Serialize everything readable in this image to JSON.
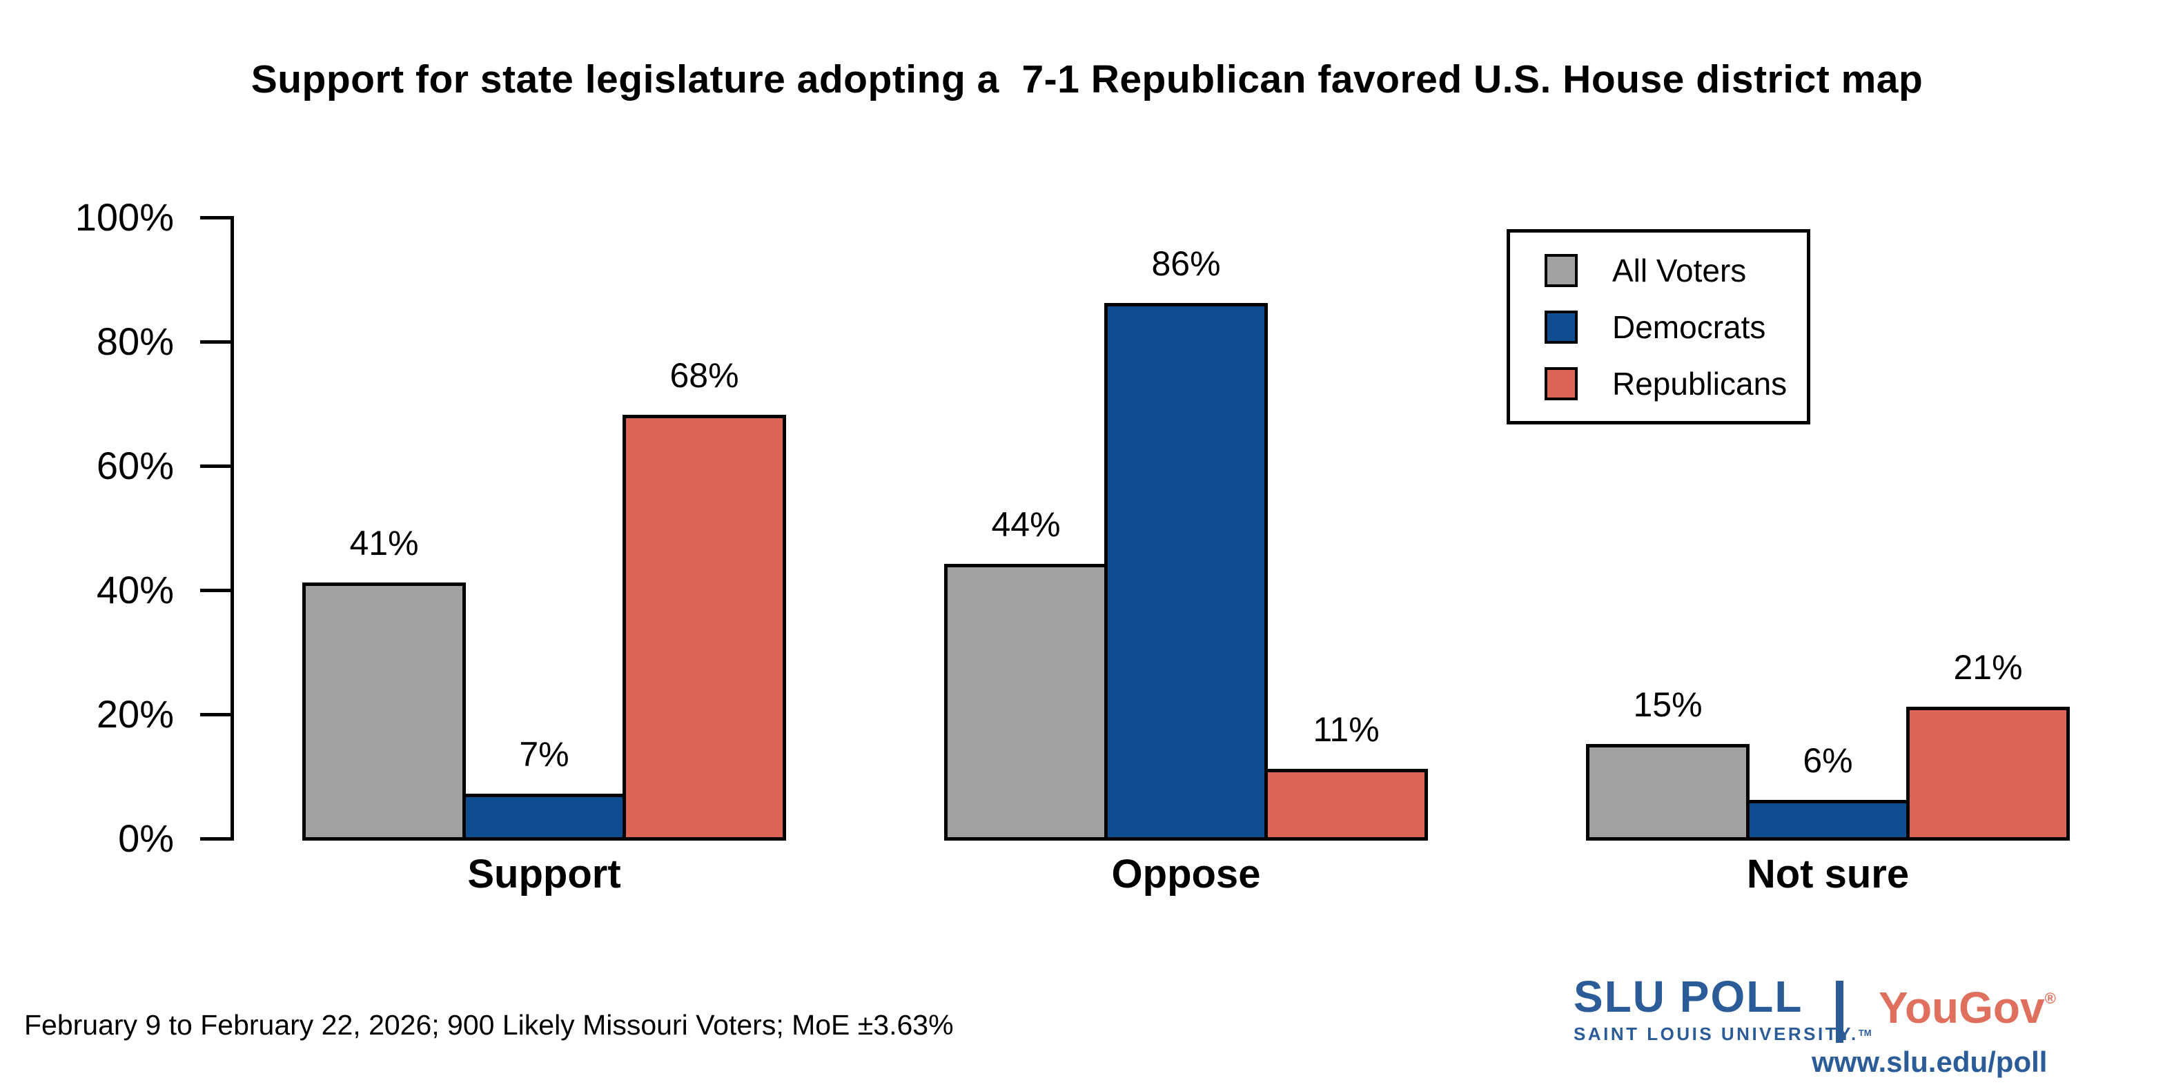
{
  "title": "Support for state legislature adopting a  7-1 Republican favored U.S. House district map",
  "chart_data": {
    "type": "bar",
    "categories": [
      "Support",
      "Oppose",
      "Not sure"
    ],
    "series": [
      {
        "name": "All Voters",
        "color": "#a1a1a1",
        "values": [
          41,
          44,
          15
        ]
      },
      {
        "name": "Democrats",
        "color": "#0e4d8f",
        "values": [
          7,
          86,
          6
        ]
      },
      {
        "name": "Republicans",
        "color": "#db6556",
        "values": [
          68,
          11,
          21
        ]
      }
    ],
    "value_label_suffix": "%",
    "ylim": [
      0,
      100
    ],
    "ytick_values": [
      0,
      20,
      40,
      60,
      80,
      100
    ],
    "ytick_labels": [
      "0%",
      "20%",
      "40%",
      "60%",
      "80%",
      "100%"
    ],
    "xlabel": "",
    "ylabel": "",
    "grid": false,
    "legend_position": "top-right",
    "bar_outline_color": "#000000"
  },
  "footer": {
    "source_note": "February 9 to February 22, 2026; 900 Likely Missouri Voters; MoE ±3.63%"
  },
  "branding": {
    "slu_poll": "SLU POLL",
    "slu_subtitle": "SAINT LOUIS UNIVERSITY.",
    "slu_trademark": "TM",
    "yougov": "YouGov",
    "yougov_registered": "®",
    "website": "www.slu.edu/poll",
    "slu_blue": "#2b5c97",
    "yougov_red": "#e0705e"
  }
}
